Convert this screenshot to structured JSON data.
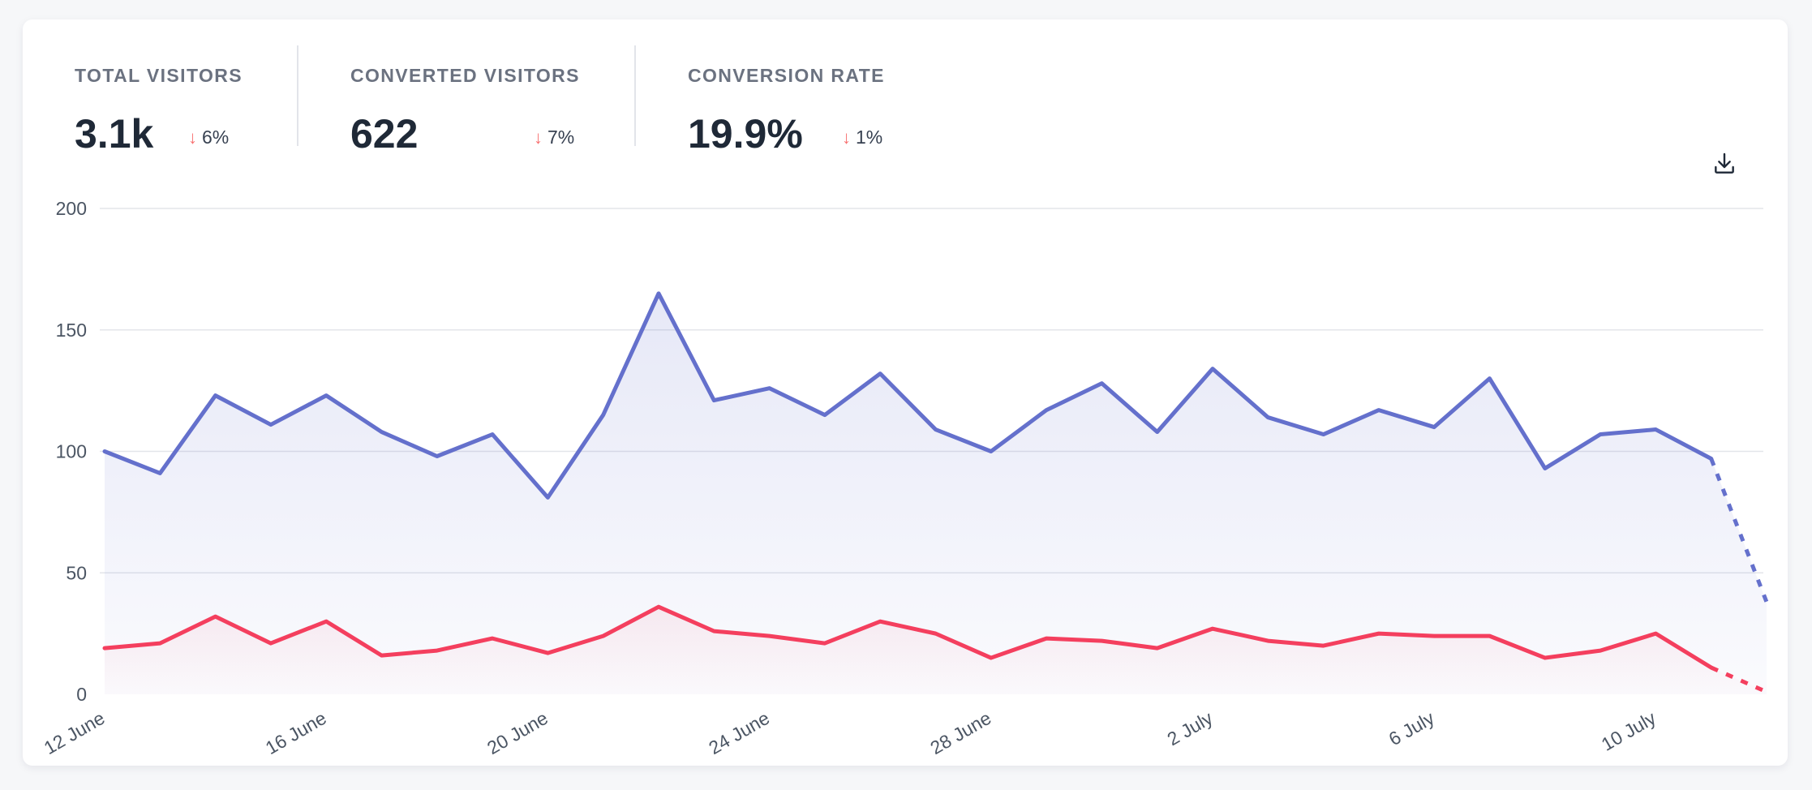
{
  "stats": [
    {
      "label": "TOTAL VISITORS",
      "value": "3.1k",
      "change": "6%",
      "direction": "down"
    },
    {
      "label": "CONVERTED VISITORS",
      "value": "622",
      "change": "7%",
      "direction": "down"
    },
    {
      "label": "CONVERSION RATE",
      "value": "19.9%",
      "change": "1%",
      "direction": "down"
    }
  ],
  "toolbar": {
    "download_icon": "download-icon"
  },
  "colors": {
    "visitors": "#6470cc",
    "conversions": "#f43f5e",
    "negative_change": "#f87171",
    "grid": "#e3e5ea"
  },
  "chart_data": {
    "type": "line",
    "ylim": [
      0,
      200
    ],
    "y_ticks": [
      "0",
      "50",
      "100",
      "150",
      "200"
    ],
    "x_tick_labels": [
      "12 June",
      "16 June",
      "20 June",
      "24 June",
      "28 June",
      "2 July",
      "6 July",
      "10 July"
    ],
    "x": [
      "12 June",
      "13 June",
      "14 June",
      "15 June",
      "16 June",
      "17 June",
      "18 June",
      "19 June",
      "20 June",
      "21 June",
      "22 June",
      "23 June",
      "24 June",
      "25 June",
      "26 June",
      "27 June",
      "28 June",
      "29 June",
      "30 June",
      "1 July",
      "2 July",
      "3 July",
      "4 July",
      "5 July",
      "6 July",
      "7 July",
      "8 July",
      "9 July",
      "10 July",
      "11 July",
      "12 July"
    ],
    "series": [
      {
        "key": "visitors",
        "values": [
          100,
          91,
          123,
          111,
          123,
          108,
          98,
          107,
          81,
          115,
          165,
          121,
          126,
          115,
          132,
          109,
          100,
          117,
          128,
          108,
          134,
          114,
          107,
          117,
          110,
          130,
          93,
          107,
          109,
          97,
          38
        ],
        "incomplete_from_index": 29,
        "filled": true
      },
      {
        "key": "conversions",
        "values": [
          19,
          21,
          32,
          21,
          30,
          16,
          18,
          23,
          17,
          24,
          36,
          26,
          24,
          21,
          30,
          25,
          15,
          23,
          22,
          19,
          27,
          22,
          20,
          25,
          24,
          24,
          15,
          18,
          25,
          11,
          1
        ],
        "incomplete_from_index": 29,
        "filled": true
      }
    ],
    "grid": true,
    "legend": "none"
  }
}
